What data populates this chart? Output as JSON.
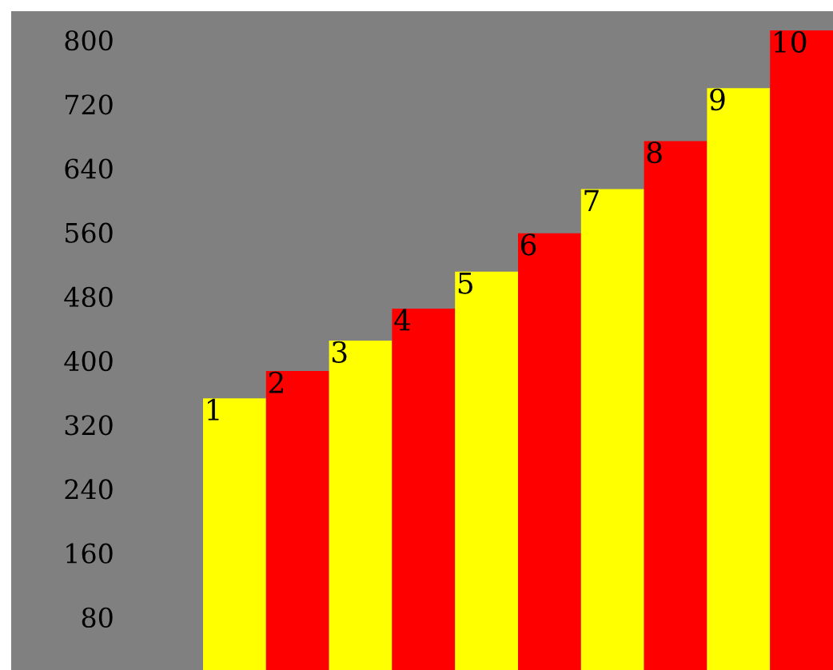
{
  "chart_data": {
    "type": "bar",
    "categories": [
      "1",
      "2",
      "3",
      "4",
      "5",
      "6",
      "7",
      "8",
      "9",
      "10"
    ],
    "values": [
      353,
      387,
      425,
      465,
      511,
      559,
      614,
      674,
      740,
      812
    ],
    "colors": [
      "#ffff00",
      "#ff0000",
      "#ffff00",
      "#ff0000",
      "#ffff00",
      "#ff0000",
      "#ffff00",
      "#ff0000",
      "#ffff00",
      "#ff0000"
    ],
    "ylim": [
      14,
      836
    ],
    "yticks": [
      80,
      160,
      240,
      320,
      400,
      480,
      560,
      640,
      720,
      800
    ],
    "grid": false
  }
}
